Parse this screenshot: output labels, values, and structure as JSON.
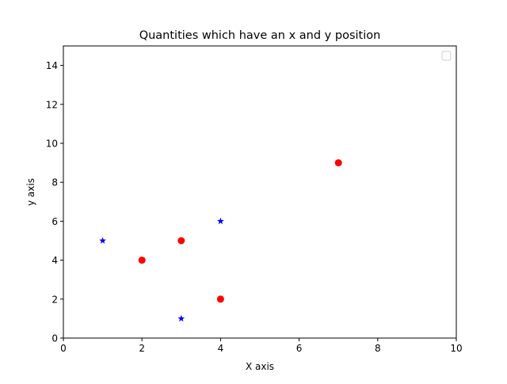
{
  "chart_data": {
    "type": "scatter",
    "title": "Quantities which have an x and y position",
    "xlabel": "X axis",
    "ylabel": "y axis",
    "xlim": [
      0,
      10
    ],
    "ylim": [
      0,
      15
    ],
    "xticks": [
      0,
      2,
      4,
      6,
      8,
      10
    ],
    "yticks": [
      0,
      2,
      4,
      6,
      8,
      10,
      12,
      14
    ],
    "grid": false,
    "legend": {
      "placement": "top-right",
      "entries": []
    },
    "series": [
      {
        "marker": "circle",
        "color": "#ff0000",
        "points": [
          [
            2,
            4
          ],
          [
            3,
            5
          ],
          [
            4,
            2
          ],
          [
            7,
            9
          ]
        ]
      },
      {
        "marker": "star",
        "color": "#0000ff",
        "points": [
          [
            1,
            5
          ],
          [
            3,
            1
          ],
          [
            4,
            6
          ]
        ]
      }
    ]
  }
}
